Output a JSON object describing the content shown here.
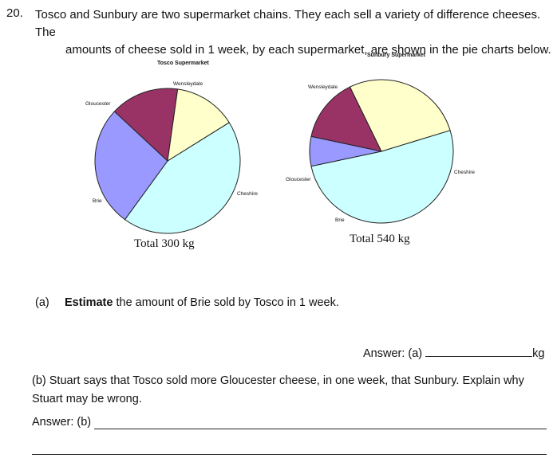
{
  "question": {
    "number": "20.",
    "stem_line1": "Tosco and Sunbury are two supermarket chains. They each sell a variety of difference cheeses. The",
    "stem_line2": "amounts of cheese sold in 1 week, by each supermarket, are shown in the pie charts below."
  },
  "chart_data": [
    {
      "type": "pie",
      "title": "Tosco Supermarket",
      "total_label": "Total 300 kg",
      "slices": [
        {
          "label": "Cheshire",
          "angle_deg": 158,
          "color": "#ccffff"
        },
        {
          "label": "Brie",
          "angle_deg": 97,
          "color": "#9999ff"
        },
        {
          "label": "Gloucester",
          "angle_deg": 55,
          "color": "#993366"
        },
        {
          "label": "Wensleydale",
          "angle_deg": 50,
          "color": "#ffffcc"
        }
      ]
    },
    {
      "type": "pie",
      "title": "Sunbury Supermarket",
      "total_label": "Total 540 kg",
      "slices": [
        {
          "label": "Cheshire",
          "angle_deg": 185,
          "color": "#ccffff"
        },
        {
          "label": "Brie",
          "angle_deg": 24,
          "color": "#9999ff"
        },
        {
          "label": "Gloucester",
          "angle_deg": 52,
          "color": "#993366"
        },
        {
          "label": "Wensleydale",
          "angle_deg": 99,
          "color": "#ffffcc"
        }
      ]
    }
  ],
  "part_a": {
    "label": "(a)",
    "bold": "Estimate",
    "rest": " the amount of Brie sold by Tosco in 1 week.",
    "answer_prefix": "Answer: (a)",
    "answer_unit": "kg"
  },
  "part_b": {
    "text_line1": "(b) Stuart says that Tosco sold more Gloucester cheese, in one week, that Sunbury. Explain why",
    "text_line2": "Stuart may be wrong.",
    "answer_prefix": "Answer: (b)"
  }
}
